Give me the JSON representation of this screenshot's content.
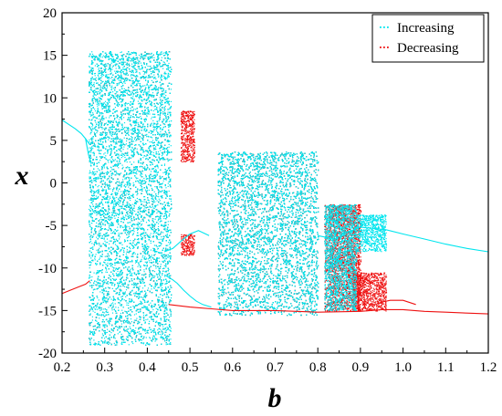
{
  "chart_data": {
    "type": "scatter",
    "title": "",
    "xlabel": "b",
    "ylabel": "x",
    "xlim": [
      0.2,
      1.2
    ],
    "ylim": [
      -20,
      20
    ],
    "x_ticks": [
      0.2,
      0.3,
      0.4,
      0.5,
      0.6,
      0.7,
      0.8,
      0.9,
      1.0,
      1.1,
      1.2
    ],
    "x_tick_labels": [
      "0.2",
      "0.3",
      "0.4",
      "0.5",
      "0.6",
      "0.7",
      "0.8",
      "0.9",
      "1.0",
      "1.1",
      "1.2"
    ],
    "y_ticks": [
      -20,
      -15,
      -10,
      -5,
      0,
      5,
      10,
      15,
      20
    ],
    "y_tick_labels": [
      "-20",
      "-15",
      "-10",
      "-5",
      "0",
      "5",
      "10",
      "15",
      "20"
    ],
    "grid": false,
    "legend_position": "top-right",
    "series": [
      {
        "name": "Increasing",
        "color": "#00e5ee",
        "periodic_branches": [
          [
            [
              0.2,
              7.4
            ],
            [
              0.215,
              6.9
            ],
            [
              0.23,
              6.4
            ],
            [
              0.245,
              5.8
            ],
            [
              0.255,
              5.2
            ],
            [
              0.265,
              4.5
            ]
          ],
          [
            [
              0.255,
              5.2
            ],
            [
              0.262,
              3.3
            ],
            [
              0.268,
              2.4
            ]
          ],
          [
            [
              0.44,
              -10.8
            ],
            [
              0.46,
              -11.4
            ],
            [
              0.47,
              -11.8
            ],
            [
              0.485,
              -12.6
            ],
            [
              0.5,
              -13.3
            ],
            [
              0.515,
              -13.9
            ],
            [
              0.53,
              -14.3
            ],
            [
              0.55,
              -14.6
            ]
          ],
          [
            [
              0.44,
              -8.1
            ],
            [
              0.46,
              -7.7
            ],
            [
              0.48,
              -6.8
            ],
            [
              0.5,
              -6.0
            ],
            [
              0.52,
              -5.6
            ],
            [
              0.545,
              -6.2
            ]
          ],
          [
            [
              0.8,
              -6.2
            ],
            [
              0.84,
              -6.6
            ],
            [
              0.86,
              -6.0
            ],
            [
              0.88,
              -5.6
            ],
            [
              0.9,
              -5.2
            ],
            [
              0.96,
              -5.5
            ],
            [
              1.0,
              -6.0
            ],
            [
              1.05,
              -6.6
            ],
            [
              1.1,
              -7.2
            ],
            [
              1.15,
              -7.7
            ],
            [
              1.2,
              -8.1
            ]
          ]
        ],
        "chaotic_regions": [
          [
            0.262,
            0.455,
            -19.0,
            15.5
          ],
          [
            0.565,
            0.8,
            -15.5,
            3.7
          ],
          [
            0.815,
            0.89,
            -15.0,
            -2.5
          ],
          [
            0.89,
            0.96,
            -8.0,
            -3.7
          ]
        ]
      },
      {
        "name": "Decreasing",
        "color": "#ee1111",
        "periodic_branches": [
          [
            [
              0.2,
              -13.0
            ],
            [
              0.22,
              -12.6
            ],
            [
              0.24,
              -12.2
            ],
            [
              0.255,
              -11.9
            ],
            [
              0.265,
              -11.5
            ]
          ],
          [
            [
              0.45,
              -14.3
            ],
            [
              0.5,
              -14.6
            ],
            [
              0.55,
              -14.8
            ],
            [
              0.6,
              -15.0
            ],
            [
              0.7,
              -15.0
            ],
            [
              0.8,
              -15.2
            ],
            [
              0.9,
              -15.1
            ],
            [
              0.95,
              -14.9
            ],
            [
              1.0,
              -14.9
            ],
            [
              1.05,
              -15.1
            ],
            [
              1.1,
              -15.2
            ],
            [
              1.15,
              -15.3
            ],
            [
              1.2,
              -15.4
            ]
          ],
          [
            [
              0.93,
              -14.4
            ],
            [
              0.95,
              -14.0
            ],
            [
              0.97,
              -13.8
            ],
            [
              1.0,
              -13.8
            ],
            [
              1.03,
              -14.3
            ]
          ]
        ],
        "chaotic_regions": [
          [
            0.262,
            0.455,
            -19.0,
            15.5
          ],
          [
            0.478,
            0.51,
            2.5,
            8.5
          ],
          [
            0.478,
            0.51,
            -8.5,
            -6.0
          ],
          [
            0.565,
            0.8,
            -15.5,
            3.7
          ],
          [
            0.815,
            0.9,
            -15.0,
            -2.5
          ],
          [
            0.88,
            0.96,
            -15.0,
            -10.5
          ]
        ]
      }
    ]
  }
}
